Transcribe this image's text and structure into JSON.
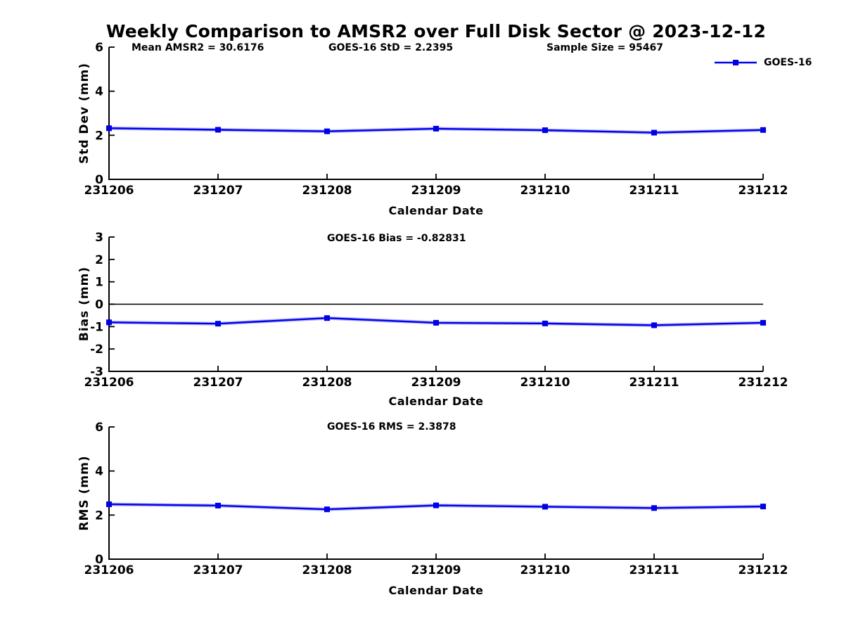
{
  "title": "Weekly Comparison to AMSR2 over Full Disk Sector @ 2023-12-12",
  "legend": {
    "label": "GOES-16"
  },
  "colors": {
    "line": "#0000e8",
    "axis": "#000000",
    "text": "#000000",
    "background": "#ffffff"
  },
  "stats": {
    "mean_amsr2": 30.6176,
    "goes16_std": 2.2395,
    "sample_size": 95467,
    "goes16_bias": -0.82831,
    "goes16_rms": 2.3878
  },
  "chart_data": [
    {
      "type": "line",
      "title": "",
      "annotations": [
        "Mean AMSR2 = 30.6176",
        "GOES-16 StD = 2.2395",
        "Sample Size = 95467"
      ],
      "categories": [
        "231206",
        "231207",
        "231208",
        "231209",
        "231210",
        "231211",
        "231212"
      ],
      "series": [
        {
          "name": "GOES-16",
          "values": [
            2.32,
            2.25,
            2.18,
            2.3,
            2.23,
            2.12,
            2.24
          ]
        }
      ],
      "xlabel": "Calendar Date",
      "ylabel": "Std Dev (mm)",
      "ylim": [
        0,
        6
      ],
      "yticks": [
        0,
        2,
        4,
        6
      ],
      "grid": false,
      "zero_line": false,
      "legend_position": "top-right-outside"
    },
    {
      "type": "line",
      "title": "",
      "annotations": [
        "GOES-16 Bias  = -0.82831"
      ],
      "categories": [
        "231206",
        "231207",
        "231208",
        "231209",
        "231210",
        "231211",
        "231212"
      ],
      "series": [
        {
          "name": "GOES-16",
          "values": [
            -0.81,
            -0.87,
            -0.62,
            -0.83,
            -0.86,
            -0.94,
            -0.83
          ]
        }
      ],
      "xlabel": "Calendar Date",
      "ylabel": "Bias (mm)",
      "ylim": [
        -3,
        3
      ],
      "yticks": [
        3,
        2,
        1,
        0,
        -1,
        -2,
        -3
      ],
      "grid": false,
      "zero_line": true,
      "legend_position": "none"
    },
    {
      "type": "line",
      "title": "",
      "annotations": [
        "GOES-16 RMS = 2.3878"
      ],
      "categories": [
        "231206",
        "231207",
        "231208",
        "231209",
        "231210",
        "231211",
        "231212"
      ],
      "series": [
        {
          "name": "GOES-16",
          "values": [
            2.49,
            2.43,
            2.26,
            2.44,
            2.38,
            2.32,
            2.39
          ]
        }
      ],
      "xlabel": "Calendar Date",
      "ylabel": "RMS (mm)",
      "ylim": [
        0,
        6
      ],
      "yticks": [
        0,
        2,
        4,
        6
      ],
      "grid": false,
      "zero_line": false,
      "legend_position": "none"
    }
  ]
}
